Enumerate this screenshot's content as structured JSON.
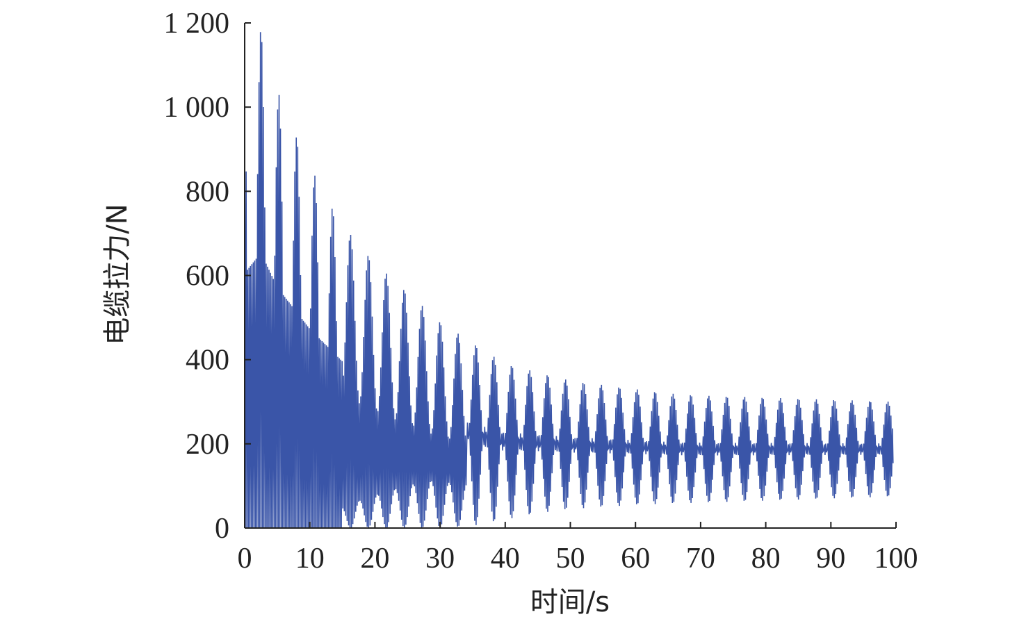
{
  "chart_data": {
    "type": "line",
    "title": "",
    "xlabel": "时间/s",
    "ylabel": "电缆拉力/N",
    "xlim": [
      0,
      100
    ],
    "ylim": [
      0,
      1200
    ],
    "x_ticks": [
      "0",
      "10",
      "20",
      "30",
      "40",
      "50",
      "60",
      "70",
      "80",
      "90",
      "100"
    ],
    "y_ticks": [
      "0",
      "200",
      "400",
      "600",
      "800",
      "1 000",
      "1 200"
    ],
    "grid": false,
    "legend": "none",
    "series_color": "#3a55a8",
    "oscillation_period_s": 2.75,
    "envelope": {
      "t": [
        0,
        2.5,
        5,
        10,
        15,
        20,
        25,
        30,
        35,
        40,
        45,
        50,
        55,
        60,
        65,
        70,
        80,
        90,
        100
      ],
      "upper": [
        1100,
        1190,
        1040,
        860,
        720,
        630,
        560,
        490,
        440,
        390,
        370,
        350,
        340,
        330,
        320,
        315,
        310,
        305,
        300
      ],
      "lower": [
        0,
        0,
        0,
        0,
        0,
        0,
        0,
        0,
        5,
        20,
        35,
        45,
        50,
        55,
        58,
        60,
        65,
        70,
        75
      ]
    }
  }
}
